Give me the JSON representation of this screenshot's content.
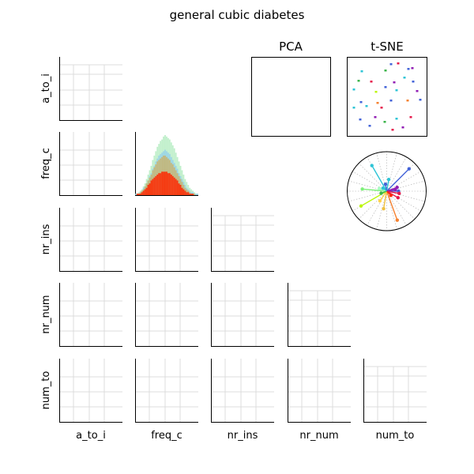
{
  "chart_data": {
    "type": "pair-grid",
    "title": "general cubic diabetes",
    "variables": [
      "a_to_i",
      "freq_c",
      "nr_ins",
      "nr_num",
      "num_to"
    ],
    "pca_title": "PCA",
    "tsne_title": "t-SNE",
    "grid": true,
    "scatter_panels": "empty",
    "histogram": {
      "variable": "freq_c",
      "series": [
        {
          "color": "#9fe8b0",
          "values": [
            1,
            1,
            2,
            3,
            4,
            6,
            8,
            11,
            14,
            17,
            20,
            24,
            27,
            30,
            33,
            35,
            37,
            38,
            40,
            41,
            40,
            39,
            38,
            36,
            34,
            32,
            29,
            26,
            23,
            20,
            17,
            14,
            11,
            9,
            7,
            5,
            4,
            3,
            2,
            1,
            1
          ]
        },
        {
          "color": "#88c8f0",
          "values": [
            1,
            1,
            1,
            2,
            3,
            5,
            6,
            8,
            10,
            13,
            15,
            18,
            20,
            23,
            25,
            27,
            28,
            29,
            30,
            31,
            30,
            29,
            28,
            26,
            24,
            22,
            20,
            18,
            15,
            13,
            11,
            9,
            7,
            5,
            4,
            3,
            2,
            2,
            1,
            1,
            1
          ]
        },
        {
          "color": "#d4a84a",
          "values": [
            0,
            1,
            1,
            2,
            3,
            4,
            6,
            8,
            10,
            12,
            14,
            17,
            19,
            21,
            23,
            24,
            25,
            26,
            27,
            27,
            26,
            25,
            24,
            22,
            21,
            19,
            17,
            15,
            13,
            11,
            9,
            7,
            5,
            4,
            3,
            2,
            1,
            1,
            1,
            0,
            0
          ]
        },
        {
          "color": "#ff2800",
          "values": [
            0,
            1,
            1,
            1,
            2,
            3,
            4,
            5,
            7,
            8,
            10,
            11,
            12,
            13,
            14,
            15,
            15,
            16,
            16,
            16,
            16,
            15,
            15,
            14,
            13,
            12,
            11,
            10,
            8,
            7,
            5,
            4,
            3,
            2,
            2,
            1,
            1,
            1,
            0,
            0,
            0
          ]
        }
      ]
    },
    "tsne_points": [
      {
        "x": 0.55,
        "y": 0.91,
        "c": "#4363d8"
      },
      {
        "x": 0.64,
        "y": 0.92,
        "c": "#e6194b"
      },
      {
        "x": 0.18,
        "y": 0.82,
        "c": "#2ec4d6"
      },
      {
        "x": 0.48,
        "y": 0.83,
        "c": "#3cb44b"
      },
      {
        "x": 0.77,
        "y": 0.85,
        "c": "#4363d8"
      },
      {
        "x": 0.82,
        "y": 0.86,
        "c": "#911eb4"
      },
      {
        "x": 0.14,
        "y": 0.7,
        "c": "#3cb44b"
      },
      {
        "x": 0.3,
        "y": 0.69,
        "c": "#e6194b"
      },
      {
        "x": 0.59,
        "y": 0.68,
        "c": "#911eb4"
      },
      {
        "x": 0.83,
        "y": 0.69,
        "c": "#4363d8"
      },
      {
        "x": 0.08,
        "y": 0.59,
        "c": "#2ec4d6"
      },
      {
        "x": 0.36,
        "y": 0.56,
        "c": "#bcf60c"
      },
      {
        "x": 0.48,
        "y": 0.62,
        "c": "#4363d8"
      },
      {
        "x": 0.62,
        "y": 0.58,
        "c": "#2ec4d6"
      },
      {
        "x": 0.88,
        "y": 0.57,
        "c": "#911eb4"
      },
      {
        "x": 0.17,
        "y": 0.43,
        "c": "#4363d8"
      },
      {
        "x": 0.24,
        "y": 0.38,
        "c": "#2ec4d6"
      },
      {
        "x": 0.43,
        "y": 0.36,
        "c": "#e6194b"
      },
      {
        "x": 0.55,
        "y": 0.45,
        "c": "#4363d8"
      },
      {
        "x": 0.76,
        "y": 0.45,
        "c": "#f58231"
      },
      {
        "x": 0.92,
        "y": 0.46,
        "c": "#4363d8"
      },
      {
        "x": 0.08,
        "y": 0.36,
        "c": "#2ec4d6"
      },
      {
        "x": 0.35,
        "y": 0.24,
        "c": "#911eb4"
      },
      {
        "x": 0.47,
        "y": 0.18,
        "c": "#3cb44b"
      },
      {
        "x": 0.62,
        "y": 0.22,
        "c": "#2ec4d6"
      },
      {
        "x": 0.8,
        "y": 0.24,
        "c": "#e6194b"
      },
      {
        "x": 0.16,
        "y": 0.21,
        "c": "#4363d8"
      },
      {
        "x": 0.28,
        "y": 0.13,
        "c": "#4363d8"
      },
      {
        "x": 0.7,
        "y": 0.11,
        "c": "#911eb4"
      },
      {
        "x": 0.57,
        "y": 0.08,
        "c": "#e6194b"
      },
      {
        "x": 0.38,
        "y": 0.42,
        "c": "#f58231"
      },
      {
        "x": 0.72,
        "y": 0.74,
        "c": "#2ec4d6"
      }
    ],
    "radar_rays": [
      {
        "angle": 80,
        "length": 0.3,
        "c": "#2ec4d6"
      },
      {
        "angle": 45,
        "length": 0.8,
        "c": "#4363d8"
      },
      {
        "angle": 120,
        "length": 0.75,
        "c": "#2ec4d6"
      },
      {
        "angle": 20,
        "length": 0.28,
        "c": "#911eb4"
      },
      {
        "angle": 0,
        "length": 0.3,
        "c": "#4363d8"
      },
      {
        "angle": -10,
        "length": 0.32,
        "c": "#e6194b"
      },
      {
        "angle": -30,
        "length": 0.33,
        "c": "#e6194b"
      },
      {
        "angle": -70,
        "length": 0.78,
        "c": "#f58231"
      },
      {
        "angle": -100,
        "length": 0.45,
        "c": "#f0c040"
      },
      {
        "angle": -125,
        "length": 0.3,
        "c": "#ffd24a"
      },
      {
        "angle": -150,
        "length": 0.75,
        "c": "#bcf60c"
      },
      {
        "angle": 175,
        "length": 0.62,
        "c": "#7ef07a"
      },
      {
        "angle": 160,
        "length": 0.2,
        "c": "#aaffc3"
      },
      {
        "angle": 100,
        "length": 0.18,
        "c": "#4363d8"
      },
      {
        "angle": -160,
        "length": 0.15,
        "c": "#3cb44b"
      },
      {
        "angle": 10,
        "length": 0.22,
        "c": "#911eb4"
      },
      {
        "angle": -45,
        "length": 0.15,
        "c": "#ff2800"
      },
      {
        "angle": 140,
        "length": 0.12,
        "c": "#2ec4d6"
      }
    ]
  }
}
